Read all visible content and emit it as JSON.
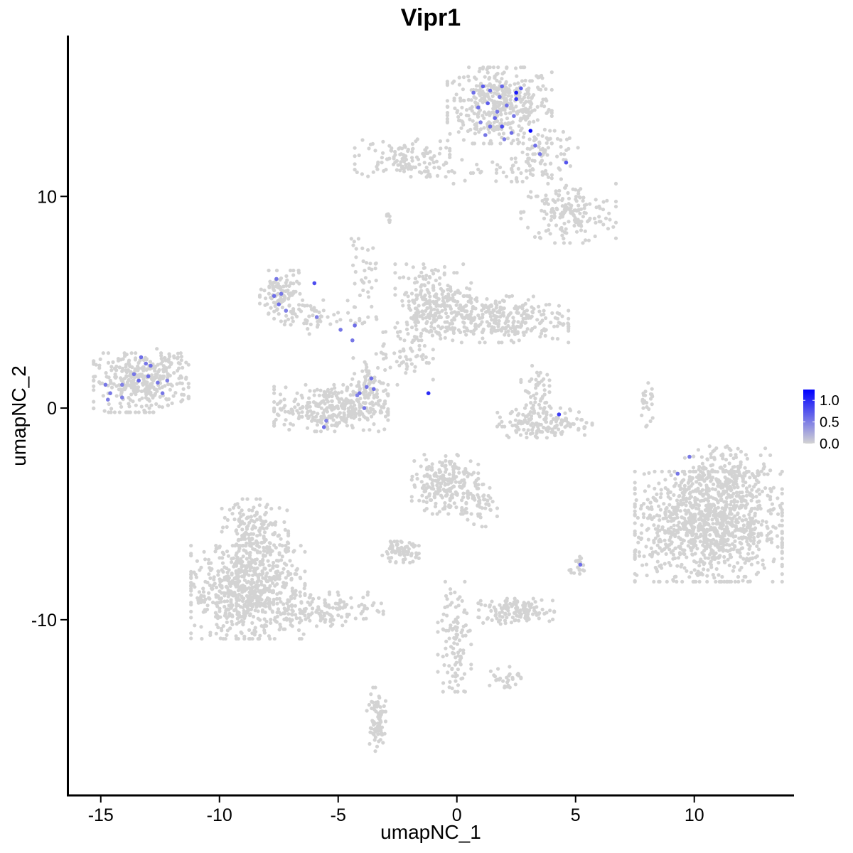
{
  "chart_data": {
    "type": "scatter",
    "title": "Vipr1",
    "xlabel": "umapNC_1",
    "ylabel": "umapNC_2",
    "xlim": [
      -16.4,
      14.2
    ],
    "ylim": [
      -18.3,
      17.6
    ],
    "x_ticks": [
      -15,
      -10,
      -5,
      0,
      5,
      10
    ],
    "x_tick_labels": [
      "-15",
      "-10",
      "-5",
      "0",
      "5",
      "10"
    ],
    "y_ticks": [
      -10,
      0,
      10
    ],
    "y_tick_labels": [
      "-10",
      "0",
      "10"
    ],
    "grid": false,
    "legend": {
      "position": "right",
      "colorbar": true,
      "ticks": [
        0.0,
        0.5,
        1.0
      ],
      "tick_labels": [
        "0.0",
        "0.5",
        "1.0"
      ],
      "range": [
        0.0,
        1.25
      ],
      "low_color": "#d3d3d3",
      "high_color": "#0000ff"
    },
    "background_color": "#d3d3d3",
    "background_clusters": [
      {
        "cx": 1.8,
        "cy": 14.3,
        "sx": 1.1,
        "sy": 0.9,
        "n": 420
      },
      {
        "cx": 3.7,
        "cy": 11.9,
        "sx": 0.7,
        "sy": 0.6,
        "n": 90
      },
      {
        "cx": 4.7,
        "cy": 9.2,
        "sx": 1.0,
        "sy": 0.7,
        "n": 170
      },
      {
        "cx": -2.3,
        "cy": 11.8,
        "sx": 1.0,
        "sy": 0.45,
        "n": 120
      },
      {
        "cx": 0.5,
        "cy": 11.2,
        "sx": 1.4,
        "sy": 0.3,
        "n": 40
      },
      {
        "cx": -13.3,
        "cy": 1.2,
        "sx": 1.0,
        "sy": 0.7,
        "n": 330
      },
      {
        "cx": -12.2,
        "cy": 2.0,
        "sx": 0.4,
        "sy": 0.4,
        "n": 30
      },
      {
        "cx": -7.4,
        "cy": 5.3,
        "sx": 0.45,
        "sy": 0.6,
        "n": 110
      },
      {
        "cx": -5.9,
        "cy": 4.3,
        "sx": 0.9,
        "sy": 0.4,
        "n": 50
      },
      {
        "cx": -4.0,
        "cy": 6.0,
        "sx": 0.3,
        "sy": 1.0,
        "n": 40
      },
      {
        "cx": -5.3,
        "cy": 0.0,
        "sx": 1.2,
        "sy": 0.55,
        "n": 320
      },
      {
        "cx": -3.7,
        "cy": 1.0,
        "sx": 0.35,
        "sy": 0.7,
        "n": 70
      },
      {
        "cx": -1.0,
        "cy": 5.0,
        "sx": 0.8,
        "sy": 0.9,
        "n": 240
      },
      {
        "cx": 1.5,
        "cy": 4.2,
        "sx": 1.6,
        "sy": 0.55,
        "n": 300
      },
      {
        "cx": -2.2,
        "cy": 2.7,
        "sx": 0.6,
        "sy": 0.8,
        "n": 60
      },
      {
        "cx": 3.7,
        "cy": -0.7,
        "sx": 1.0,
        "sy": 0.35,
        "n": 150
      },
      {
        "cx": 3.3,
        "cy": 0.8,
        "sx": 0.3,
        "sy": 0.6,
        "n": 50
      },
      {
        "cx": 8.0,
        "cy": 0.3,
        "sx": 0.15,
        "sy": 0.6,
        "n": 25
      },
      {
        "cx": 10.6,
        "cy": -5.6,
        "sx": 1.55,
        "sy": 1.3,
        "n": 1050
      },
      {
        "cx": 11.4,
        "cy": -3.2,
        "sx": 0.9,
        "sy": 0.7,
        "n": 200
      },
      {
        "cx": -0.5,
        "cy": -3.6,
        "sx": 0.7,
        "sy": 0.7,
        "n": 220
      },
      {
        "cx": 0.9,
        "cy": -4.6,
        "sx": 0.4,
        "sy": 0.5,
        "n": 50
      },
      {
        "cx": -2.4,
        "cy": -6.8,
        "sx": 0.4,
        "sy": 0.25,
        "n": 70
      },
      {
        "cx": -8.8,
        "cy": -8.7,
        "sx": 1.2,
        "sy": 1.1,
        "n": 650
      },
      {
        "cx": -8.5,
        "cy": -6.1,
        "sx": 0.7,
        "sy": 0.9,
        "n": 200
      },
      {
        "cx": -5.5,
        "cy": -9.5,
        "sx": 1.2,
        "sy": 0.4,
        "n": 140
      },
      {
        "cx": 2.5,
        "cy": -9.6,
        "sx": 0.8,
        "sy": 0.3,
        "n": 130
      },
      {
        "cx": -0.1,
        "cy": -10.8,
        "sx": 0.35,
        "sy": 1.3,
        "n": 110
      },
      {
        "cx": 2.0,
        "cy": -12.7,
        "sx": 0.35,
        "sy": 0.3,
        "n": 30
      },
      {
        "cx": -3.4,
        "cy": -14.8,
        "sx": 0.2,
        "sy": 0.8,
        "n": 80
      },
      {
        "cx": 5.1,
        "cy": -7.4,
        "sx": 0.2,
        "sy": 0.25,
        "n": 20
      },
      {
        "cx": -2.8,
        "cy": 9.0,
        "sx": 0.1,
        "sy": 0.15,
        "n": 8
      }
    ],
    "expressing_points": [
      {
        "x": 1.1,
        "y": 15.2,
        "v": 0.7
      },
      {
        "x": 1.4,
        "y": 15.0,
        "v": 0.6
      },
      {
        "x": 1.9,
        "y": 15.2,
        "v": 0.65
      },
      {
        "x": 2.5,
        "y": 14.9,
        "v": 1.1
      },
      {
        "x": 2.5,
        "y": 14.6,
        "v": 0.9
      },
      {
        "x": 1.3,
        "y": 14.4,
        "v": 0.7
      },
      {
        "x": 0.9,
        "y": 14.2,
        "v": 0.6
      },
      {
        "x": 1.7,
        "y": 14.0,
        "v": 0.55
      },
      {
        "x": 2.1,
        "y": 14.3,
        "v": 0.6
      },
      {
        "x": 1.6,
        "y": 13.7,
        "v": 0.65
      },
      {
        "x": 1.0,
        "y": 13.5,
        "v": 0.5
      },
      {
        "x": 2.4,
        "y": 13.8,
        "v": 0.55
      },
      {
        "x": 1.4,
        "y": 13.3,
        "v": 0.6
      },
      {
        "x": 1.9,
        "y": 13.3,
        "v": 0.8
      },
      {
        "x": 2.3,
        "y": 13.0,
        "v": 0.6
      },
      {
        "x": 1.2,
        "y": 12.9,
        "v": 0.55
      },
      {
        "x": 2.0,
        "y": 12.7,
        "v": 0.5
      },
      {
        "x": 3.1,
        "y": 13.1,
        "v": 1.2
      },
      {
        "x": 3.3,
        "y": 12.4,
        "v": 0.6
      },
      {
        "x": 3.5,
        "y": 12.0,
        "v": 0.55
      },
      {
        "x": 4.6,
        "y": 11.6,
        "v": 0.75
      },
      {
        "x": 0.7,
        "y": 14.9,
        "v": 0.6
      },
      {
        "x": 2.7,
        "y": 15.1,
        "v": 0.7
      },
      {
        "x": 1.8,
        "y": 14.7,
        "v": 0.55
      },
      {
        "x": -13.3,
        "y": 2.4,
        "v": 0.6
      },
      {
        "x": -13.1,
        "y": 2.1,
        "v": 0.55
      },
      {
        "x": -12.9,
        "y": 2.0,
        "v": 0.6
      },
      {
        "x": -13.6,
        "y": 1.6,
        "v": 0.55
      },
      {
        "x": -13.0,
        "y": 1.5,
        "v": 0.6
      },
      {
        "x": -12.6,
        "y": 1.2,
        "v": 0.55
      },
      {
        "x": -14.8,
        "y": 1.1,
        "v": 0.55
      },
      {
        "x": -14.1,
        "y": 1.1,
        "v": 0.5
      },
      {
        "x": -13.4,
        "y": 1.3,
        "v": 0.65
      },
      {
        "x": -14.6,
        "y": 0.7,
        "v": 0.55
      },
      {
        "x": -14.1,
        "y": 0.5,
        "v": 0.5
      },
      {
        "x": -12.4,
        "y": 0.7,
        "v": 0.55
      },
      {
        "x": -12.2,
        "y": 1.3,
        "v": 0.5
      },
      {
        "x": -14.7,
        "y": 0.4,
        "v": 0.5
      },
      {
        "x": -7.6,
        "y": 6.1,
        "v": 0.55
      },
      {
        "x": -7.7,
        "y": 5.3,
        "v": 0.6
      },
      {
        "x": -7.4,
        "y": 5.4,
        "v": 0.55
      },
      {
        "x": -7.5,
        "y": 4.9,
        "v": 0.6
      },
      {
        "x": -7.2,
        "y": 4.6,
        "v": 0.5
      },
      {
        "x": -6.0,
        "y": 5.9,
        "v": 0.8
      },
      {
        "x": -5.9,
        "y": 4.3,
        "v": 0.5
      },
      {
        "x": -4.9,
        "y": 3.7,
        "v": 0.55
      },
      {
        "x": -4.3,
        "y": 3.9,
        "v": 0.6
      },
      {
        "x": -4.4,
        "y": 3.2,
        "v": 0.55
      },
      {
        "x": -3.6,
        "y": 1.4,
        "v": 0.6
      },
      {
        "x": -3.8,
        "y": 1.0,
        "v": 0.55
      },
      {
        "x": -3.5,
        "y": 0.9,
        "v": 0.6
      },
      {
        "x": -4.1,
        "y": 0.7,
        "v": 0.6
      },
      {
        "x": -4.2,
        "y": 0.6,
        "v": 0.5
      },
      {
        "x": -3.9,
        "y": 0.0,
        "v": 0.55
      },
      {
        "x": -5.5,
        "y": -0.6,
        "v": 0.5
      },
      {
        "x": -5.6,
        "y": -0.9,
        "v": 0.6
      },
      {
        "x": -1.2,
        "y": 0.7,
        "v": 1.0
      },
      {
        "x": 4.3,
        "y": -0.3,
        "v": 0.9
      },
      {
        "x": 9.8,
        "y": -2.3,
        "v": 0.55
      },
      {
        "x": 9.3,
        "y": -3.1,
        "v": 0.55
      },
      {
        "x": 5.2,
        "y": -7.4,
        "v": 0.6
      }
    ]
  }
}
